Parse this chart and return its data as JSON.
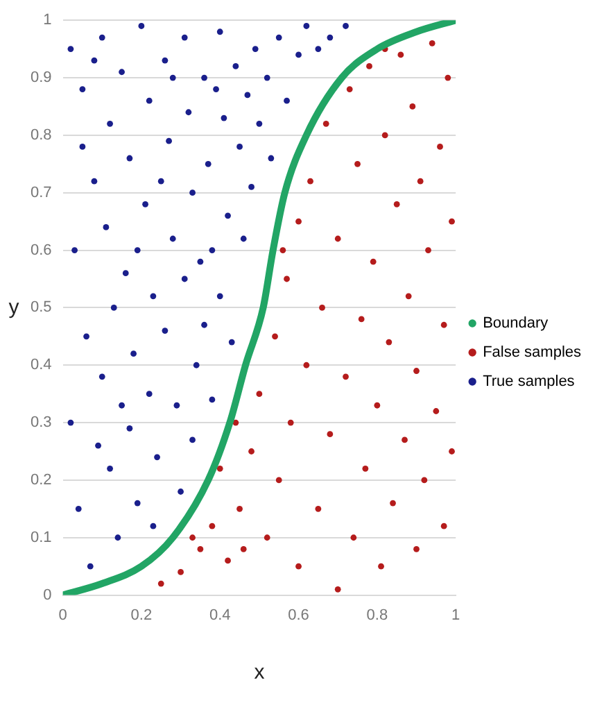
{
  "chart_data": {
    "type": "scatter",
    "xlabel": "x",
    "ylabel": "y",
    "xlim": [
      0,
      1
    ],
    "ylim": [
      0,
      1
    ],
    "xticks": [
      0,
      0.2,
      0.4,
      0.6,
      0.8,
      1
    ],
    "yticks": [
      0,
      0.1,
      0.2,
      0.3,
      0.4,
      0.5,
      0.6,
      0.7,
      0.8,
      0.9,
      1
    ],
    "grid": "y",
    "legend": "right",
    "marker": "circle",
    "series": [
      {
        "name": "Boundary",
        "type": "line",
        "marker": "none",
        "color": "#22a565",
        "x": [
          0,
          0.1,
          0.2,
          0.28,
          0.37,
          0.425,
          0.465,
          0.51,
          0.535,
          0.565,
          0.62,
          0.71,
          0.8,
          0.9,
          1
        ],
        "values": [
          0,
          0.02,
          0.05,
          0.1,
          0.2,
          0.3,
          0.4,
          0.5,
          0.6,
          0.7,
          0.8,
          0.9,
          0.95,
          0.98,
          1
        ]
      },
      {
        "name": "False samples",
        "color": "#b51c1c",
        "x": [
          0.25,
          0.3,
          0.35,
          0.38,
          0.42,
          0.45,
          0.48,
          0.5,
          0.52,
          0.54,
          0.55,
          0.57,
          0.58,
          0.6,
          0.6,
          0.62,
          0.63,
          0.65,
          0.66,
          0.67,
          0.68,
          0.7,
          0.7,
          0.72,
          0.73,
          0.74,
          0.75,
          0.76,
          0.77,
          0.78,
          0.79,
          0.8,
          0.81,
          0.82,
          0.83,
          0.84,
          0.85,
          0.86,
          0.87,
          0.88,
          0.89,
          0.9,
          0.9,
          0.91,
          0.92,
          0.93,
          0.94,
          0.95,
          0.96,
          0.97,
          0.97,
          0.98,
          0.99,
          0.99,
          0.56,
          0.44,
          0.4,
          0.33,
          0.46,
          0.82
        ],
        "values": [
          0.02,
          0.04,
          0.08,
          0.12,
          0.06,
          0.15,
          0.25,
          0.35,
          0.1,
          0.45,
          0.2,
          0.55,
          0.3,
          0.65,
          0.05,
          0.4,
          0.72,
          0.15,
          0.5,
          0.82,
          0.28,
          0.62,
          0.01,
          0.38,
          0.88,
          0.1,
          0.75,
          0.48,
          0.22,
          0.92,
          0.58,
          0.33,
          0.05,
          0.8,
          0.44,
          0.16,
          0.68,
          0.94,
          0.27,
          0.52,
          0.85,
          0.08,
          0.39,
          0.72,
          0.2,
          0.6,
          0.96,
          0.32,
          0.78,
          0.12,
          0.47,
          0.9,
          0.25,
          0.65,
          0.6,
          0.3,
          0.22,
          0.1,
          0.08,
          0.95
        ]
      },
      {
        "name": "True samples",
        "color": "#1a1f8c",
        "x": [
          0.02,
          0.05,
          0.08,
          0.03,
          0.06,
          0.02,
          0.04,
          0.07,
          0.1,
          0.12,
          0.11,
          0.13,
          0.1,
          0.12,
          0.14,
          0.15,
          0.17,
          0.16,
          0.18,
          0.17,
          0.19,
          0.2,
          0.22,
          0.21,
          0.23,
          0.22,
          0.24,
          0.23,
          0.26,
          0.27,
          0.28,
          0.26,
          0.29,
          0.3,
          0.31,
          0.32,
          0.33,
          0.31,
          0.34,
          0.33,
          0.36,
          0.37,
          0.38,
          0.36,
          0.38,
          0.4,
          0.41,
          0.42,
          0.4,
          0.43,
          0.44,
          0.45,
          0.46,
          0.47,
          0.48,
          0.49,
          0.5,
          0.52,
          0.53,
          0.55,
          0.57,
          0.6,
          0.62,
          0.65,
          0.68,
          0.72,
          0.05,
          0.09,
          0.15,
          0.25,
          0.35,
          0.08,
          0.19,
          0.28,
          0.39
        ],
        "values": [
          0.95,
          0.88,
          0.72,
          0.6,
          0.45,
          0.3,
          0.15,
          0.05,
          0.97,
          0.82,
          0.64,
          0.5,
          0.38,
          0.22,
          0.1,
          0.91,
          0.76,
          0.56,
          0.42,
          0.29,
          0.16,
          0.99,
          0.86,
          0.68,
          0.52,
          0.35,
          0.24,
          0.12,
          0.93,
          0.79,
          0.62,
          0.46,
          0.33,
          0.18,
          0.97,
          0.84,
          0.7,
          0.55,
          0.4,
          0.27,
          0.9,
          0.75,
          0.6,
          0.47,
          0.34,
          0.98,
          0.83,
          0.66,
          0.52,
          0.44,
          0.92,
          0.78,
          0.62,
          0.87,
          0.71,
          0.95,
          0.82,
          0.9,
          0.76,
          0.97,
          0.86,
          0.94,
          0.99,
          0.95,
          0.97,
          0.99,
          0.78,
          0.26,
          0.33,
          0.72,
          0.58,
          0.93,
          0.6,
          0.9,
          0.88
        ]
      }
    ]
  }
}
